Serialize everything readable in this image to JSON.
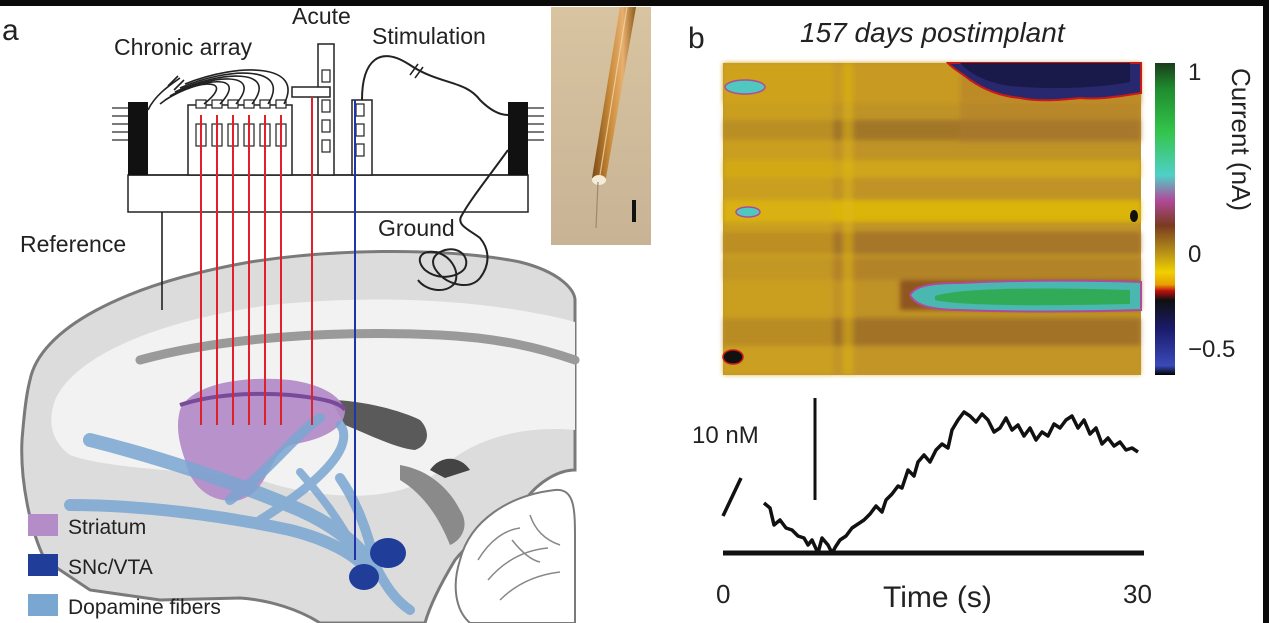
{
  "panel_a": {
    "letter": "a",
    "labels": {
      "chronic_array": "Chronic array",
      "acute": "Acute",
      "stimulation": "Stimulation",
      "reference": "Reference",
      "ground": "Ground"
    },
    "legend": [
      {
        "label": "Striatum",
        "color": "#b48cc8"
      },
      {
        "label": "SNc/VTA",
        "color": "#1f3d99"
      },
      {
        "label": "Dopamine fibers",
        "color": "#7aa6d2"
      }
    ]
  },
  "panel_b": {
    "letter": "b",
    "title": "157 days postimplant",
    "colorbar": {
      "label": "Current (nA)",
      "ticks": [
        "1",
        "0",
        "−0.5"
      ]
    },
    "trace": {
      "scale_label": "10 nM",
      "x_start": "0",
      "x_end": "30",
      "xlabel": "Time (s)"
    }
  },
  "colors": {
    "array_wire": "#e0202a",
    "stim_wire": "#2233aa",
    "brain_fill": "#dcdcdc",
    "brain_outline": "#777777"
  }
}
